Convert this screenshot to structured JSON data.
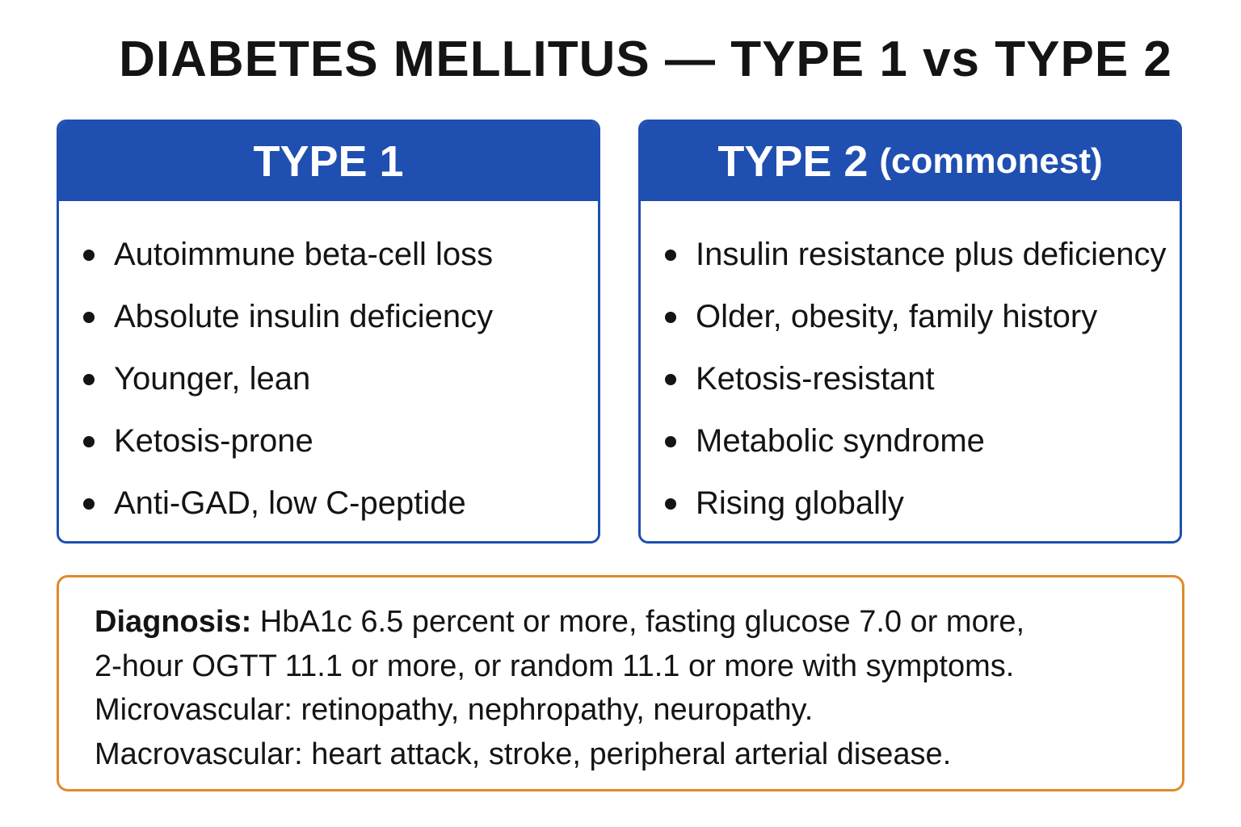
{
  "title": "DIABETES MELLITUS — TYPE 1 vs TYPE 2",
  "type1": {
    "heading": "TYPE 1",
    "bullets": [
      "Autoimmune beta-cell loss",
      "Absolute insulin deficiency",
      "Younger, lean",
      "Ketosis-prone",
      "Anti-GAD, low C-peptide"
    ]
  },
  "type2": {
    "heading": "TYPE 2",
    "heading_sub": "(commonest)",
    "bullets": [
      "Insulin resistance plus deficiency",
      "Older, obesity, family history",
      "Ketosis-resistant",
      "Metabolic syndrome",
      "Rising globally"
    ]
  },
  "diagnosis": {
    "label": "Diagnosis:",
    "line1": " HbA1c 6.5 percent or more, fasting glucose 7.0 or more,",
    "line2": "2-hour OGTT 11.1 or more, or random 11.1 or more with symptoms.",
    "line3": "Microvascular: retinopathy, nephropathy, neuropathy.",
    "line4": "Macrovascular: heart attack, stroke, peripheral arterial disease."
  },
  "colors": {
    "header_blue": "#1f4fb0",
    "border_orange": "#e08a2a"
  }
}
